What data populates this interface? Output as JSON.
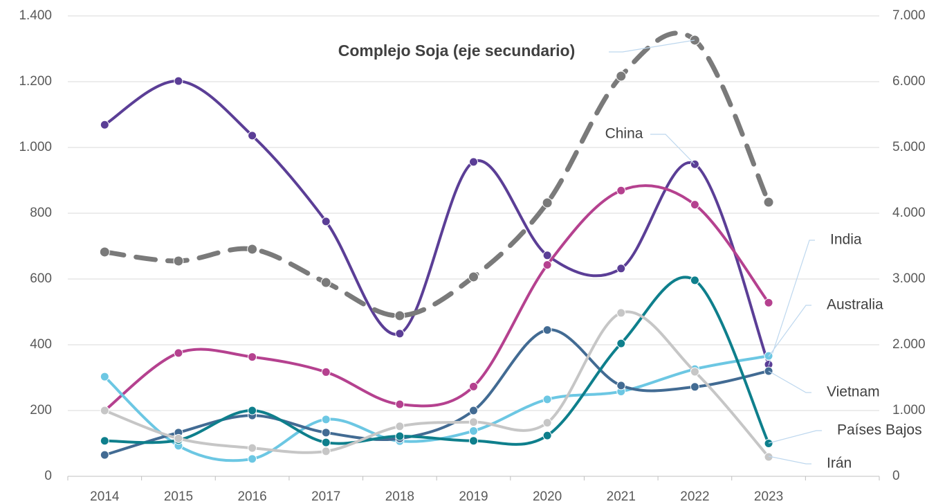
{
  "chart_data": {
    "type": "line",
    "categories": [
      "2014",
      "2015",
      "2016",
      "2017",
      "2018",
      "2019",
      "2020",
      "2021",
      "2022",
      "2023"
    ],
    "ylim": [
      0,
      1400
    ],
    "yticks": [
      0,
      200,
      400,
      600,
      800,
      {
        "value": 1000,
        "label": "1.000"
      },
      {
        "value": 1200,
        "label": "1.200"
      },
      {
        "value": 1400,
        "label": "1.400"
      }
    ],
    "y2lim": [
      0,
      7000
    ],
    "y2ticks": [
      0,
      {
        "value": 1000,
        "label": "1.000"
      },
      {
        "value": 2000,
        "label": "2.000"
      },
      {
        "value": 3000,
        "label": "3.000"
      },
      {
        "value": 4000,
        "label": "4.000"
      },
      {
        "value": 5000,
        "label": "5.000"
      },
      {
        "value": 6000,
        "label": "6.000"
      },
      {
        "value": 7000,
        "label": "7.000"
      }
    ],
    "grid": true,
    "smooth": true,
    "series": [
      {
        "name": "China",
        "color": "#5b3e96",
        "values": [
          1069,
          1202,
          1036,
          775,
          434,
          956,
          672,
          632,
          949,
          340
        ]
      },
      {
        "name": "India",
        "color": "#b5418f",
        "values": [
          200,
          375,
          363,
          317,
          219,
          273,
          643,
          869,
          826,
          528
        ]
      },
      {
        "name": "Australia",
        "color": "#6cc7e3",
        "values": [
          303,
          93,
          53,
          173,
          107,
          138,
          234,
          258,
          326,
          366
        ]
      },
      {
        "name": "Vietnam",
        "color": "#426b93",
        "values": [
          65,
          133,
          185,
          133,
          115,
          200,
          445,
          276,
          272,
          320
        ]
      },
      {
        "name": "Países Bajos",
        "color": "#0e7f8c",
        "values": [
          108,
          110,
          200,
          103,
          122,
          108,
          124,
          404,
          596,
          100
        ]
      },
      {
        "name": "Irán",
        "color": "#c6c6c6",
        "values": [
          200,
          115,
          86,
          76,
          152,
          165,
          163,
          497,
          318,
          59
        ]
      },
      {
        "name": "Complejo Soja (eje secundario)",
        "color": "#7a7a7a",
        "dashed": true,
        "axis": "y2",
        "values": [
          3411,
          3274,
          3453,
          2947,
          2442,
          3032,
          4158,
          6084,
          6632,
          4168
        ]
      }
    ]
  }
}
